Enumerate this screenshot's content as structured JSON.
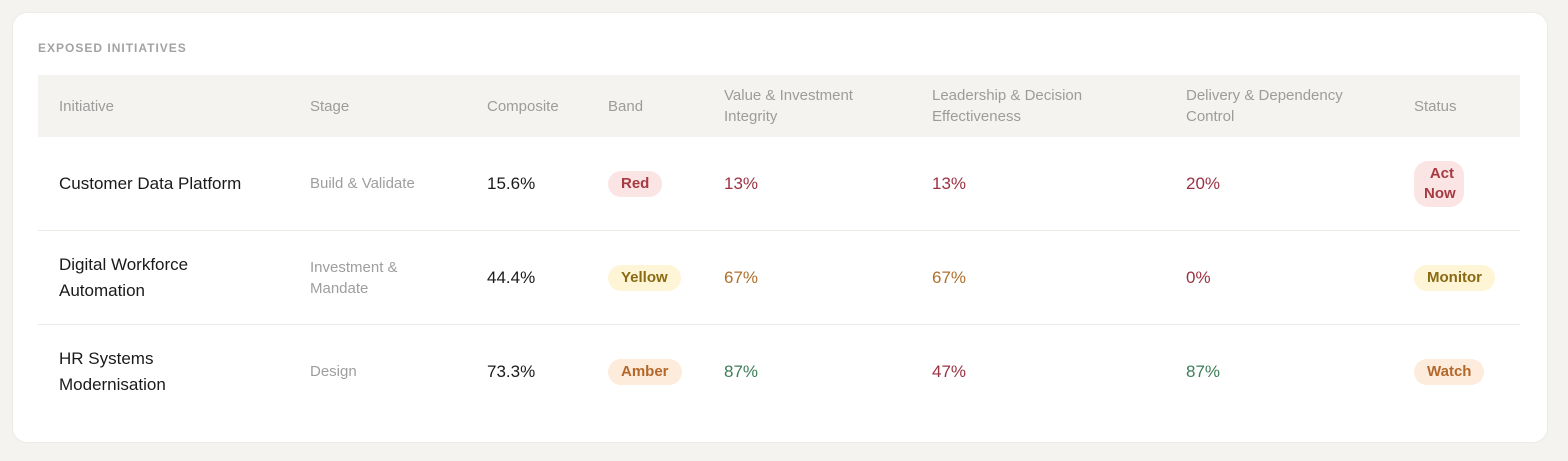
{
  "header": {
    "title": "EXPOSED INITIATIVES"
  },
  "table": {
    "columns": [
      "Initiative",
      "Stage",
      "Composite",
      "Band",
      "Value & Investment Integrity",
      "Leadership & Decision Effectiveness",
      "Delivery & Dependency Control",
      "Status"
    ],
    "rows": [
      [
        "Customer Data Platform",
        "Build & Validate",
        "15.6%",
        "Red",
        "13%",
        "13%",
        "20%",
        "Act Now"
      ],
      [
        "Digital Workforce Automation",
        "Investment & Mandate",
        "44.4%",
        "Yellow",
        "67%",
        "67%",
        "0%",
        "Monitor"
      ],
      [
        "HR Systems Modernisation",
        "Design",
        "73.3%",
        "Amber",
        "87%",
        "47%",
        "87%",
        "Watch"
      ]
    ]
  }
}
